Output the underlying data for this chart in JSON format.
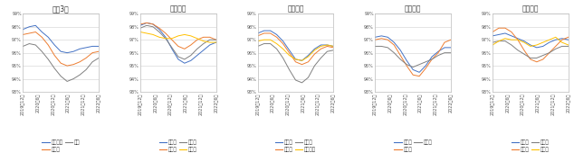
{
  "panels": [
    {
      "title": "都心3区",
      "legend": [
        [
          "千代田区",
          "#4472c4"
        ],
        [
          "中央区",
          "#ed7d31"
        ],
        [
          "港区",
          "#808080"
        ]
      ],
      "ylim": [
        93,
        99
      ],
      "yticks": [
        93,
        94,
        95,
        96,
        97,
        98,
        99
      ],
      "series": {
        "千代田区": [
          97.8,
          98.0,
          98.1,
          97.6,
          97.2,
          96.6,
          96.1,
          96.0,
          96.1,
          96.3,
          96.4,
          96.5,
          96.5
        ],
        "中央区": [
          97.4,
          97.5,
          97.6,
          97.2,
          96.6,
          95.8,
          95.2,
          95.0,
          95.1,
          95.3,
          95.6,
          96.0,
          96.1
        ],
        "港区": [
          96.5,
          96.7,
          96.6,
          96.1,
          95.5,
          94.8,
          94.2,
          93.8,
          94.0,
          94.3,
          94.7,
          95.3,
          95.6
        ]
      }
    },
    {
      "title": "城東地区",
      "legend": [
        [
          "台東区",
          "#4472c4"
        ],
        [
          "江東区",
          "#ed7d31"
        ],
        [
          "墓田区",
          "#808080"
        ],
        [
          "その他",
          "#ffc000"
        ]
      ],
      "ylim": [
        93,
        99
      ],
      "yticks": [
        93,
        94,
        95,
        96,
        97,
        98,
        99
      ],
      "series": {
        "台東区": [
          98.1,
          98.3,
          98.2,
          97.8,
          97.2,
          96.3,
          95.5,
          95.2,
          95.4,
          95.8,
          96.2,
          96.6,
          96.8
        ],
        "江東区": [
          98.2,
          98.3,
          98.2,
          97.9,
          97.5,
          97.0,
          96.5,
          96.3,
          96.6,
          97.0,
          97.2,
          97.2,
          97.0
        ],
        "墓田区": [
          97.9,
          98.1,
          98.0,
          97.6,
          97.1,
          96.4,
          95.7,
          95.5,
          95.8,
          96.3,
          96.7,
          97.0,
          97.0
        ],
        "その他": [
          97.6,
          97.5,
          97.4,
          97.2,
          97.1,
          97.1,
          97.3,
          97.4,
          97.3,
          97.1,
          96.9,
          96.8,
          96.8
        ]
      }
    },
    {
      "title": "城南地区",
      "legend": [
        [
          "品川区",
          "#4472c4"
        ],
        [
          "大田区",
          "#ed7d31"
        ],
        [
          "目黒区",
          "#808080"
        ],
        [
          "世田谷区",
          "#ffc000"
        ]
      ],
      "ylim": [
        93,
        99
      ],
      "yticks": [
        93,
        94,
        95,
        96,
        97,
        98,
        99
      ],
      "series": {
        "品川区": [
          97.5,
          97.7,
          97.7,
          97.4,
          96.9,
          96.2,
          95.5,
          95.4,
          95.8,
          96.3,
          96.6,
          96.6,
          96.5
        ],
        "大田区": [
          97.3,
          97.5,
          97.5,
          97.2,
          96.7,
          96.0,
          95.3,
          95.1,
          95.3,
          95.9,
          96.3,
          96.5,
          96.4
        ],
        "目黒区": [
          96.5,
          96.7,
          96.7,
          96.3,
          95.6,
          94.7,
          93.9,
          93.7,
          94.1,
          95.0,
          95.6,
          96.1,
          96.2
        ],
        "世田谷区": [
          96.9,
          97.0,
          97.0,
          96.7,
          96.3,
          95.8,
          95.5,
          95.4,
          95.7,
          96.2,
          96.5,
          96.6,
          96.5
        ]
      }
    },
    {
      "title": "城西地区",
      "legend": [
        [
          "新宿区",
          "#4472c4"
        ],
        [
          "渋谷区",
          "#ed7d31"
        ],
        [
          "その他",
          "#808080"
        ]
      ],
      "ylim": [
        93,
        99
      ],
      "yticks": [
        93,
        94,
        95,
        96,
        97,
        98,
        99
      ],
      "series": {
        "新宿区": [
          97.2,
          97.3,
          97.2,
          96.8,
          96.2,
          95.4,
          94.7,
          94.5,
          95.0,
          95.7,
          96.1,
          96.4,
          96.4
        ],
        "渋谷区": [
          97.0,
          97.1,
          97.0,
          96.6,
          95.8,
          95.0,
          94.3,
          94.2,
          94.8,
          95.5,
          96.0,
          96.8,
          97.0
        ],
        "その他": [
          96.5,
          96.5,
          96.4,
          96.0,
          95.5,
          95.1,
          94.9,
          95.1,
          95.3,
          95.5,
          95.8,
          96.0,
          96.0
        ]
      }
    },
    {
      "title": "城北地区",
      "legend": [
        [
          "文京区",
          "#4472c4"
        ],
        [
          "豊島区",
          "#ed7d31"
        ],
        [
          "板橋区",
          "#808080"
        ],
        [
          "その他",
          "#ffc000"
        ]
      ],
      "ylim": [
        93,
        99
      ],
      "yticks": [
        93,
        94,
        95,
        96,
        97,
        98,
        99
      ],
      "series": {
        "文京区": [
          97.3,
          97.4,
          97.5,
          97.3,
          97.1,
          96.9,
          96.6,
          96.4,
          96.5,
          96.8,
          97.0,
          97.1,
          97.0
        ],
        "豊島区": [
          97.6,
          97.9,
          97.9,
          97.6,
          97.0,
          96.2,
          95.5,
          95.3,
          95.5,
          96.0,
          96.5,
          97.0,
          97.2
        ],
        "板橋区": [
          96.8,
          96.9,
          96.9,
          96.6,
          96.2,
          95.9,
          95.6,
          95.6,
          95.8,
          96.0,
          96.3,
          96.5,
          96.5
        ],
        "その他": [
          96.6,
          96.9,
          97.1,
          97.0,
          97.0,
          96.8,
          96.5,
          96.6,
          96.8,
          97.0,
          97.2,
          96.8,
          96.6
        ]
      }
    }
  ],
  "x_labels": [
    "2019年12月",
    "2020年6月",
    "2020年12月",
    "2021年6月",
    "2021年12月",
    "2022年6月"
  ],
  "x_ticks_n": 13,
  "background_color": "#ffffff",
  "grid_color": "#d0d0d0",
  "title_fontsize": 5.5,
  "tick_fontsize": 3.5,
  "legend_fontsize": 4.0
}
